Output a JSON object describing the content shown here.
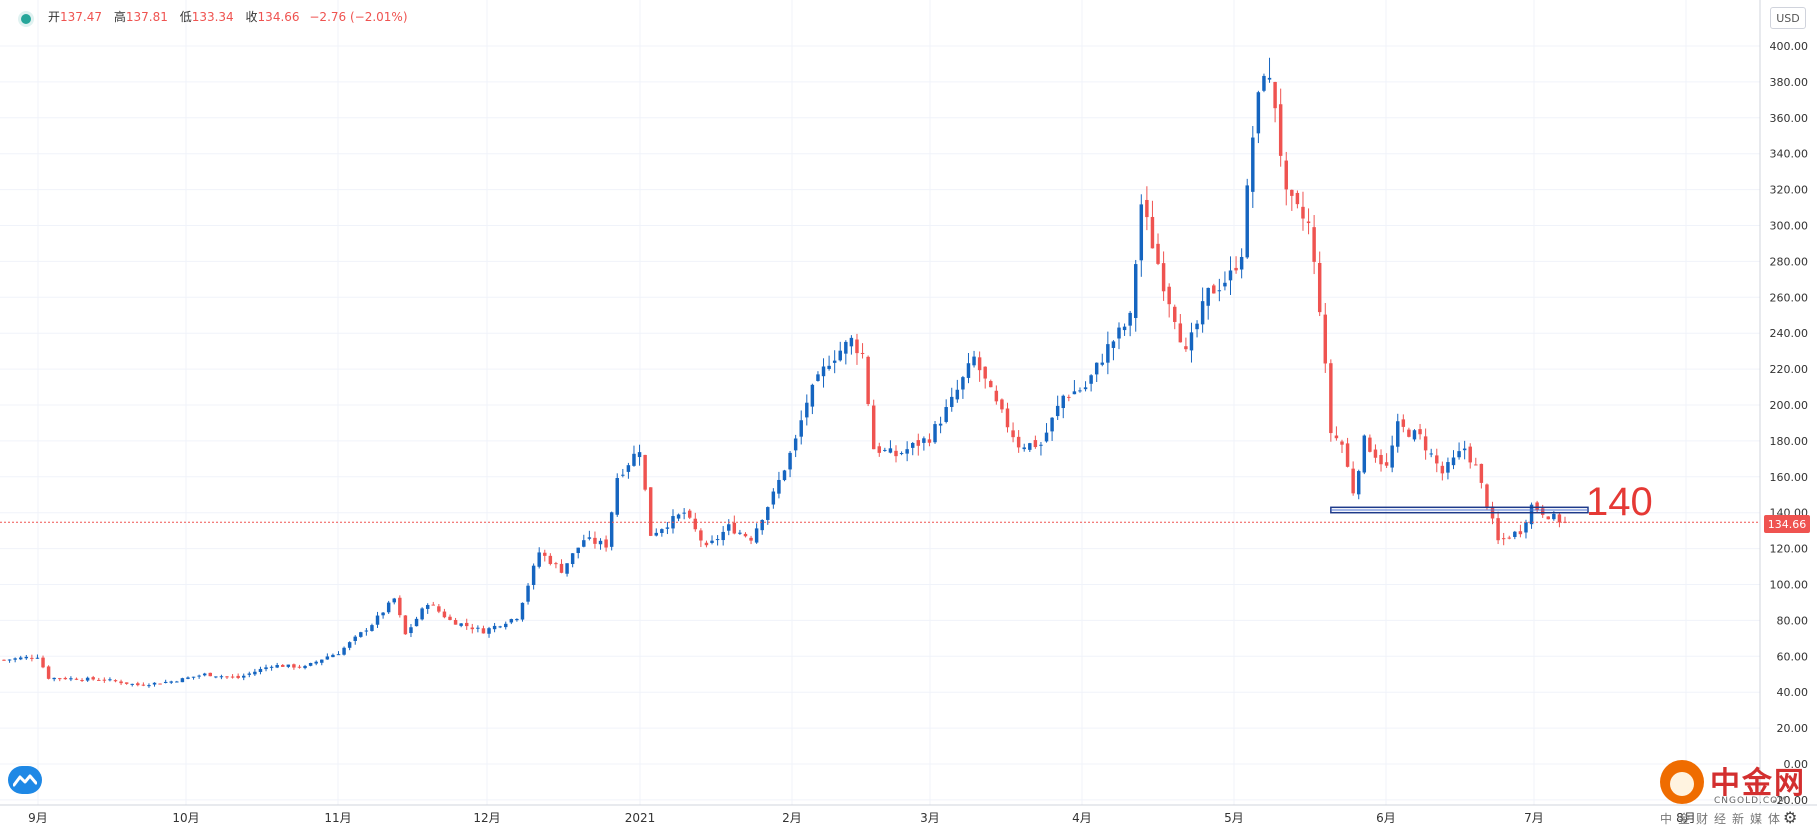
{
  "header": {
    "open_label": "开",
    "open": "137.47",
    "high_label": "高",
    "high": "137.81",
    "low_label": "低",
    "low": "133.34",
    "close_label": "收",
    "close": "134.66",
    "change": "−2.76 (−2.01%)"
  },
  "currency": "USD",
  "current_price_label": "134.66",
  "annotation": "140",
  "watermark": {
    "brand": "中金网",
    "site": "CNGOLD.COM",
    "cn": "中金财经新媒体"
  },
  "colors": {
    "up": "#1565c0",
    "down": "#ef5350",
    "grid": "#f0f3fa",
    "price_line": "#ef5350",
    "box": "#1e3a8a"
  },
  "chart_data": {
    "type": "candlestick",
    "y_axis": {
      "min": -20,
      "max": 410,
      "ticks": [
        "400.00",
        "380.00",
        "360.00",
        "340.00",
        "320.00",
        "300.00",
        "280.00",
        "260.00",
        "240.00",
        "220.00",
        "200.00",
        "180.00",
        "160.00",
        "140.00",
        "120.00",
        "100.00",
        "80.00",
        "60.00",
        "40.00",
        "20.00",
        "0.00",
        "-20.00"
      ],
      "tick_values": [
        400,
        380,
        360,
        340,
        320,
        300,
        280,
        260,
        240,
        220,
        200,
        180,
        160,
        140,
        120,
        100,
        80,
        60,
        40,
        20,
        0,
        -20
      ]
    },
    "x_axis": {
      "labels": [
        "9月",
        "10月",
        "11月",
        "12月",
        "2021",
        "2月",
        "3月",
        "4月",
        "5月",
        "6月",
        "7月",
        "8月"
      ]
    },
    "annotation_level": 140,
    "current_price": 134.66,
    "waypoints": [
      [
        0,
        58
      ],
      [
        6,
        60
      ],
      [
        8,
        48
      ],
      [
        18,
        47
      ],
      [
        24,
        44
      ],
      [
        30,
        46
      ],
      [
        36,
        50
      ],
      [
        42,
        48
      ],
      [
        48,
        55
      ],
      [
        54,
        54
      ],
      [
        58,
        60
      ],
      [
        60,
        62
      ],
      [
        66,
        78
      ],
      [
        70,
        92
      ],
      [
        72,
        72
      ],
      [
        76,
        90
      ],
      [
        80,
        80
      ],
      [
        86,
        74
      ],
      [
        92,
        82
      ],
      [
        96,
        118
      ],
      [
        100,
        108
      ],
      [
        104,
        125
      ],
      [
        108,
        122
      ],
      [
        110,
        160
      ],
      [
        114,
        176
      ],
      [
        116,
        128
      ],
      [
        122,
        140
      ],
      [
        126,
        120
      ],
      [
        130,
        132
      ],
      [
        134,
        126
      ],
      [
        138,
        150
      ],
      [
        142,
        180
      ],
      [
        144,
        202
      ],
      [
        148,
        225
      ],
      [
        152,
        236
      ],
      [
        154,
        228
      ],
      [
        156,
        176
      ],
      [
        160,
        172
      ],
      [
        166,
        182
      ],
      [
        170,
        202
      ],
      [
        174,
        226
      ],
      [
        178,
        200
      ],
      [
        182,
        178
      ],
      [
        186,
        178
      ],
      [
        190,
        205
      ],
      [
        194,
        210
      ],
      [
        198,
        232
      ],
      [
        202,
        248
      ],
      [
        204,
        312
      ],
      [
        208,
        268
      ],
      [
        210,
        250
      ],
      [
        212,
        228
      ],
      [
        216,
        262
      ],
      [
        220,
        272
      ],
      [
        222,
        286
      ],
      [
        224,
        350
      ],
      [
        226,
        388
      ],
      [
        228,
        368
      ],
      [
        230,
        315
      ],
      [
        234,
        300
      ],
      [
        236,
        255
      ],
      [
        238,
        185
      ],
      [
        240,
        178
      ],
      [
        242,
        152
      ],
      [
        244,
        180
      ],
      [
        248,
        165
      ],
      [
        250,
        188
      ],
      [
        254,
        182
      ],
      [
        258,
        162
      ],
      [
        262,
        176
      ],
      [
        264,
        165
      ],
      [
        266,
        145
      ],
      [
        268,
        124
      ],
      [
        272,
        130
      ],
      [
        274,
        144
      ],
      [
        278,
        137
      ],
      [
        280,
        134.66
      ]
    ]
  }
}
